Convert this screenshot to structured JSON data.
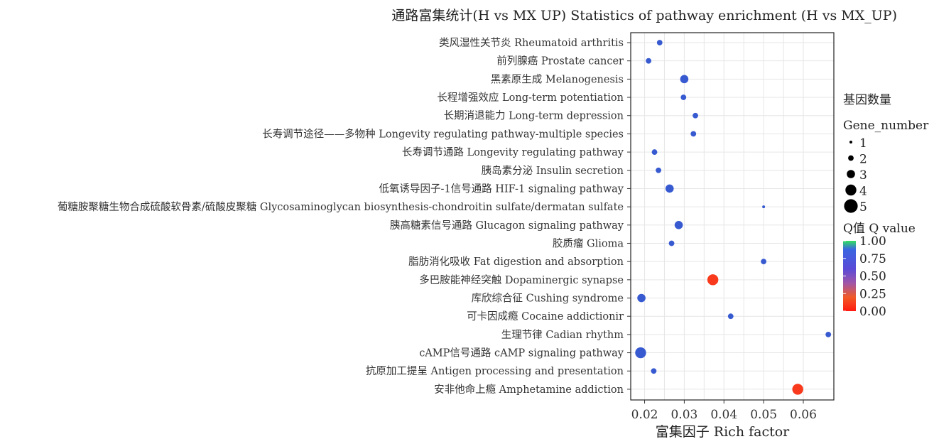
{
  "chart_data": {
    "type": "scatter",
    "title": "通路富集统计(H vs MX UP) Statistics of pathway enrichment (H vs MX_UP)",
    "xlabel": "富集因子 Rich factor",
    "ylabel": "",
    "xlim": [
      0.0165,
      0.0677
    ],
    "xticks": [
      "0.02",
      "0.03",
      "0.04",
      "0.05",
      "0.06"
    ],
    "xtick_values": [
      0.02,
      0.03,
      0.04,
      0.05,
      0.06
    ],
    "grid": true,
    "categories": [
      "类风湿性关节炎 Rheumatoid arthritis",
      "前列腺癌 Prostate cancer",
      "黑素原生成 Melanogenesis",
      "长程增强效应 Long-term potentiation",
      "长期消退能力 Long-term depression",
      "长寿调节途径——多物种 Longevity regulating pathway-multiple species",
      "长寿调节通路 Longevity regulating pathway",
      "胰岛素分泌 Insulin secretion",
      "低氧诱导因子-1信号通路 HIF-1 signaling pathway",
      "葡糖胺聚糖生物合成硫酸软骨素/硫酸皮聚糖 Glycosaminoglycan biosynthesis-chondroitin sulfate/dermatan sulfate",
      "胰高糖素信号通路 Glucagon signaling pathway",
      "胶质瘤 Glioma",
      "脂肪消化吸收 Fat digestion and absorption",
      "多巴胺能神经突触 Dopaminergic synapse",
      "库欣综合征 Cushing syndrome",
      "可卡因成瘾 Cocaine addictionir",
      "生理节律 Cadian rhythm",
      "cAMP信号通路 cAMP signaling pathway",
      "抗原加工提呈 Antigen processing and presentation",
      "安非他命上瘾 Amphetamine addiction"
    ],
    "rich_factor": [
      0.0238,
      0.021,
      0.03,
      0.0298,
      0.0328,
      0.0323,
      0.0225,
      0.0235,
      0.0263,
      0.05,
      0.0286,
      0.0268,
      0.05,
      0.0372,
      0.0192,
      0.0417,
      0.0663,
      0.019,
      0.0223,
      0.0586
    ],
    "gene_number": [
      2,
      2,
      3,
      2,
      2,
      2,
      2,
      2,
      3,
      1,
      3,
      2,
      2,
      4,
      3,
      2,
      2,
      4,
      2,
      4
    ],
    "q_value": [
      0.78,
      0.78,
      0.78,
      0.78,
      0.78,
      0.78,
      0.78,
      0.78,
      0.78,
      0.78,
      0.78,
      0.78,
      0.78,
      0.12,
      0.78,
      0.78,
      0.78,
      0.78,
      0.78,
      0.12
    ],
    "size_legend": {
      "title_cn": "基因数量",
      "title_en": "Gene_number",
      "labels": [
        "1",
        "2",
        "3",
        "4",
        "5"
      ],
      "values": [
        1,
        2,
        3,
        4,
        5
      ]
    },
    "color_legend": {
      "title": "Q值 Q value",
      "labels": [
        "1.00",
        "0.75",
        "0.50",
        "0.25",
        "0.00"
      ],
      "values": [
        1.0,
        0.75,
        0.5,
        0.25,
        0.0
      ],
      "colors": [
        "#33e060",
        "#3848e0",
        "#8a55b8",
        "#f05a28",
        "#ff1a10"
      ]
    },
    "panel_color": "#ffffff",
    "grid_color": "#e6e6e6"
  }
}
